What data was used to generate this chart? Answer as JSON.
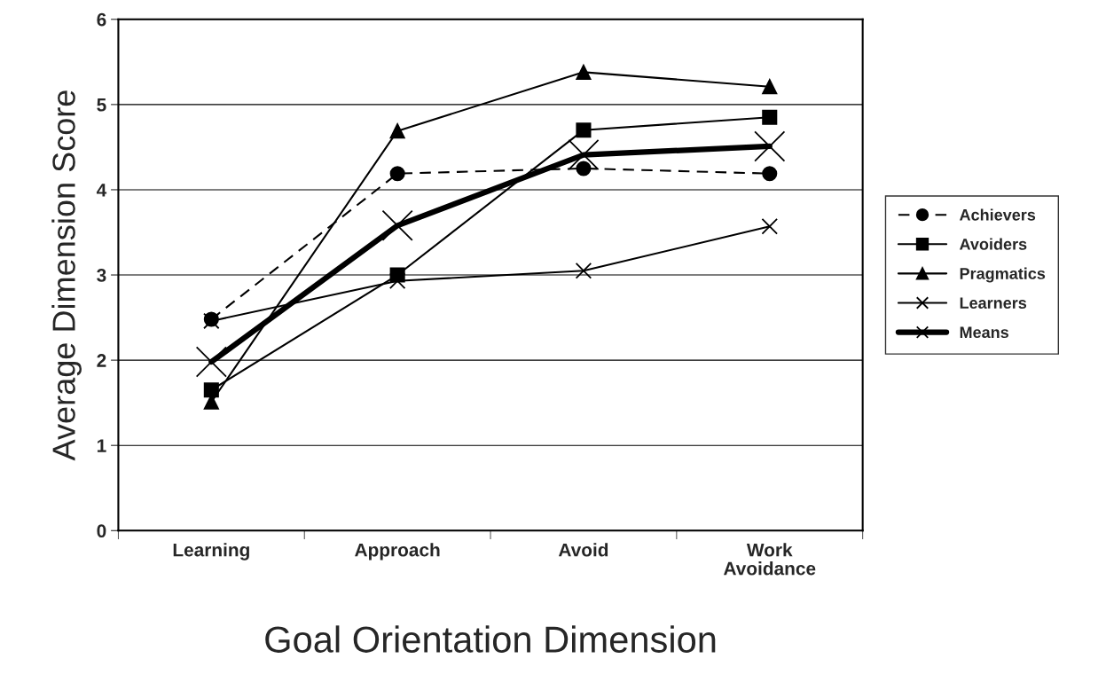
{
  "chart_data": {
    "type": "line",
    "xlabel": "Goal Orientation Dimension",
    "ylabel": "Average Dimension Score",
    "categories": [
      "Learning",
      "Approach",
      "Avoid",
      "Work\nAvoidance"
    ],
    "series": [
      {
        "name": "Achievers",
        "color": "#000000",
        "marker": "circle",
        "line_style": "dashed",
        "values": [
          2.48,
          4.19,
          4.25,
          4.19
        ]
      },
      {
        "name": "Avoiders",
        "color": "#000000",
        "marker": "square",
        "line_style": "solid",
        "values": [
          1.65,
          3.0,
          4.7,
          4.85
        ]
      },
      {
        "name": "Pragmatics",
        "color": "#000000",
        "marker": "triangle",
        "line_style": "solid",
        "values": [
          1.51,
          4.69,
          5.38,
          5.21
        ]
      },
      {
        "name": "Learners",
        "color": "#000000",
        "marker": "cross",
        "line_style": "solid",
        "values": [
          2.46,
          2.93,
          3.05,
          3.57
        ]
      },
      {
        "name": "Means",
        "color": "#000000",
        "marker": "cross",
        "line_style": "solid",
        "values": [
          1.98,
          3.58,
          4.41,
          4.51
        ]
      }
    ],
    "ylim": [
      0,
      6
    ],
    "yticks": [
      0,
      1,
      2,
      3,
      4,
      5,
      6
    ],
    "grid": "y",
    "legend": "right"
  }
}
